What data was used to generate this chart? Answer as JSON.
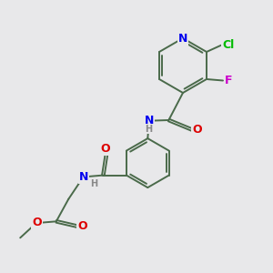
{
  "background_color": "#e8e8ea",
  "bond_color": "#4a6a4a",
  "atom_colors": {
    "N": "#0000ee",
    "O": "#dd0000",
    "F": "#cc00cc",
    "Cl": "#00bb00",
    "C": "#3a5a3a",
    "H": "#888888"
  },
  "figsize": [
    3.0,
    3.0
  ],
  "dpi": 100,
  "lw": 1.4,
  "fontsize": 8.5
}
